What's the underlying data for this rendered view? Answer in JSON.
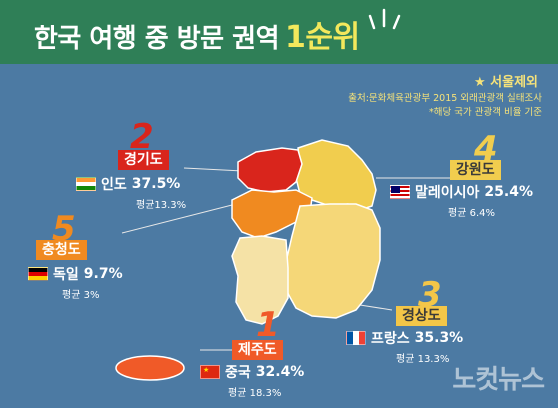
{
  "header": {
    "title_main": "한국 여행 중 방문 권역",
    "title_highlight": "1순위"
  },
  "notes": {
    "star": "★ 서울제외",
    "source": "출처:문화체육관광부 2015 외래관광객 실태조사",
    "footnote": "*해당 국가 관광객 비율 기준"
  },
  "colors": {
    "header": "#2f7f57",
    "sea": "#4c7aa3",
    "rank1": "#f05a28",
    "rank2": "#d9251c",
    "rank3": "#f3c648",
    "rank4": "#f1cd4e",
    "rank5": "#f08a20"
  },
  "regions": [
    {
      "rank": "1",
      "name": "제주도",
      "country": "중국",
      "country_icon": "china-flag-icon",
      "pct": "32.4%",
      "avg": "평균 18.3%"
    },
    {
      "rank": "2",
      "name": "경기도",
      "country": "인도",
      "country_icon": "india-flag-icon",
      "pct": "37.5%",
      "avg": "평균13.3%"
    },
    {
      "rank": "3",
      "name": "경상도",
      "country": "프랑스",
      "country_icon": "france-flag-icon",
      "pct": "35.3%",
      "avg": "평균 13.3%"
    },
    {
      "rank": "4",
      "name": "강원도",
      "country": "말레이시아",
      "country_icon": "malaysia-flag-icon",
      "pct": "25.4%",
      "avg": "평균 6.4%"
    },
    {
      "rank": "5",
      "name": "충청도",
      "country": "독일",
      "country_icon": "germany-flag-icon",
      "pct": "9.7%",
      "avg": "평균 3%"
    }
  ],
  "watermark": "노컷뉴스"
}
